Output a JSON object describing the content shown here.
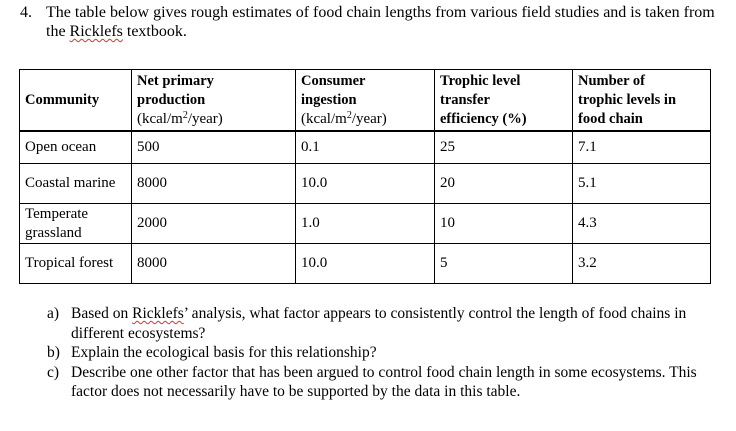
{
  "question": {
    "number": "4.",
    "text_before": "The table below gives rough estimates of food chain lengths from various field studies and is taken from the ",
    "highlighted_word": "Ricklefs",
    "text_after": " textbook."
  },
  "table": {
    "headers": [
      {
        "bold": "Community",
        "unit_pre": "",
        "unit_sup": "",
        "unit_post": ""
      },
      {
        "bold_line1": "Net primary",
        "bold_line2": "production",
        "unit_pre": "(kcal/m",
        "unit_sup": "2",
        "unit_post": "/year)"
      },
      {
        "bold_line1": "Consumer",
        "bold_line2": "ingestion",
        "unit_pre": "(kcal/m",
        "unit_sup": "2",
        "unit_post": "/year)"
      },
      {
        "bold_line1": "Trophic level",
        "bold_line2": "transfer",
        "bold_line3": "efficiency (%)"
      },
      {
        "bold_line1": "Number of",
        "bold_line2": "trophic levels in",
        "bold_line3": "food chain"
      }
    ],
    "rows": [
      {
        "community": "Open ocean",
        "npp": "500",
        "consumer": "0.1",
        "efficiency": "25",
        "levels": "7.1"
      },
      {
        "community": "Coastal marine",
        "npp": "8000",
        "consumer": "10.0",
        "efficiency": "20",
        "levels": "5.1"
      },
      {
        "community": "Temperate grassland",
        "npp": "2000",
        "consumer": "1.0",
        "efficiency": "10",
        "levels": "4.3"
      },
      {
        "community": "Tropical forest",
        "npp": "8000",
        "consumer": "10.0",
        "efficiency": "5",
        "levels": "3.2"
      }
    ]
  },
  "subquestions": [
    {
      "label": "a)",
      "text_before": "Based on ",
      "highlighted_word": "Ricklefs",
      "text_after": "’ analysis, what factor appears to consistently control the length of food chains in different ecosystems?"
    },
    {
      "label": "b)",
      "text": "Explain the ecological basis for this relationship?"
    },
    {
      "label": "c)",
      "text": "Describe one other factor that has been argued to control food chain length in some ecosystems. This factor does not necessarily have to be supported by the data in this table."
    }
  ]
}
